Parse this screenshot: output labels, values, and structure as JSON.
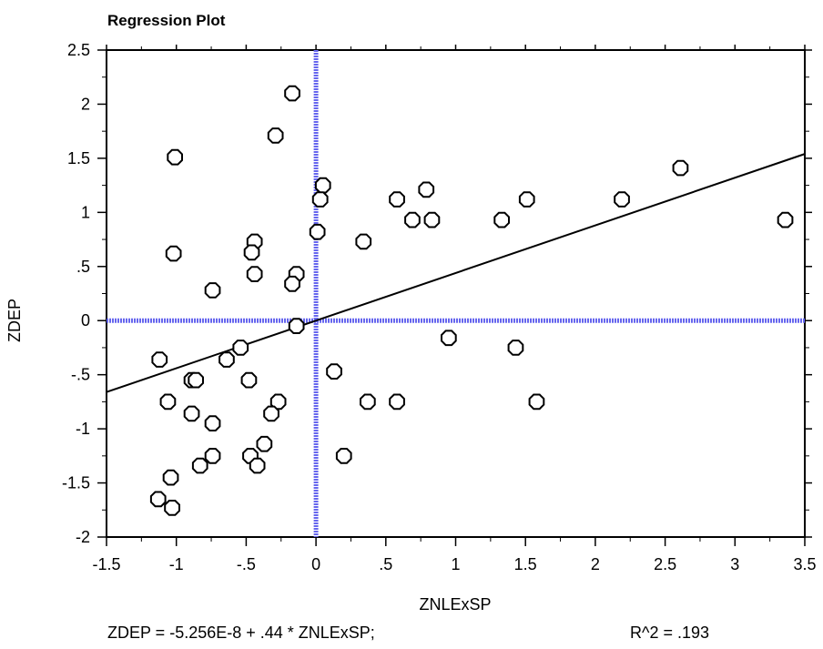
{
  "chart_data": {
    "type": "scatter",
    "title": "Regression Plot",
    "xlabel": "ZNLExSP",
    "ylabel": "ZDEP",
    "xlim": [
      -1.5,
      3.5
    ],
    "ylim": [
      -2,
      2.5
    ],
    "x_ticks": [
      -1.5,
      -1,
      -0.5,
      0,
      0.5,
      1,
      1.5,
      2,
      2.5,
      3,
      3.5
    ],
    "x_tick_labels": [
      "-1.5",
      "-1",
      "-.5",
      "0",
      ".5",
      "1",
      "1.5",
      "2",
      "2.5",
      "3",
      "3.5"
    ],
    "y_ticks": [
      -2,
      -1.5,
      -1,
      -0.5,
      0,
      0.5,
      1,
      1.5,
      2,
      2.5
    ],
    "y_tick_labels": [
      "-2",
      "-1.5",
      "-1",
      "-.5",
      "0",
      ".5",
      "1",
      "1.5",
      "2",
      "2.5"
    ],
    "points": [
      {
        "x": -0.17,
        "y": 2.1
      },
      {
        "x": -0.29,
        "y": 1.71
      },
      {
        "x": -1.01,
        "y": 1.51
      },
      {
        "x": -1.02,
        "y": 0.62
      },
      {
        "x": -0.44,
        "y": 0.73
      },
      {
        "x": -0.46,
        "y": 0.63
      },
      {
        "x": -0.44,
        "y": 0.43
      },
      {
        "x": -0.74,
        "y": 0.28
      },
      {
        "x": -0.14,
        "y": 0.43
      },
      {
        "x": -0.17,
        "y": 0.34
      },
      {
        "x": 0.05,
        "y": 1.25
      },
      {
        "x": 0.03,
        "y": 1.12
      },
      {
        "x": 0.01,
        "y": 0.82
      },
      {
        "x": 0.34,
        "y": 0.73
      },
      {
        "x": 0.58,
        "y": 1.12
      },
      {
        "x": 0.69,
        "y": 0.93
      },
      {
        "x": 0.79,
        "y": 1.21
      },
      {
        "x": 0.83,
        "y": 0.93
      },
      {
        "x": 1.33,
        "y": 0.93
      },
      {
        "x": 1.51,
        "y": 1.12
      },
      {
        "x": 2.19,
        "y": 1.12
      },
      {
        "x": 2.61,
        "y": 1.41
      },
      {
        "x": 3.36,
        "y": 0.93
      },
      {
        "x": -0.14,
        "y": -0.05
      },
      {
        "x": -1.12,
        "y": -0.36
      },
      {
        "x": -0.64,
        "y": -0.36
      },
      {
        "x": -0.54,
        "y": -0.25
      },
      {
        "x": -0.89,
        "y": -0.55
      },
      {
        "x": -0.86,
        "y": -0.55
      },
      {
        "x": -0.48,
        "y": -0.55
      },
      {
        "x": -1.06,
        "y": -0.75
      },
      {
        "x": -0.27,
        "y": -0.75
      },
      {
        "x": -0.89,
        "y": -0.86
      },
      {
        "x": -0.32,
        "y": -0.86
      },
      {
        "x": -0.74,
        "y": -0.95
      },
      {
        "x": -0.37,
        "y": -1.14
      },
      {
        "x": -0.74,
        "y": -1.25
      },
      {
        "x": -0.47,
        "y": -1.25
      },
      {
        "x": -0.83,
        "y": -1.34
      },
      {
        "x": -0.42,
        "y": -1.34
      },
      {
        "x": -1.04,
        "y": -1.45
      },
      {
        "x": -1.13,
        "y": -1.65
      },
      {
        "x": -1.03,
        "y": -1.73
      },
      {
        "x": 0.13,
        "y": -0.47
      },
      {
        "x": 0.2,
        "y": -1.25
      },
      {
        "x": 0.37,
        "y": -0.75
      },
      {
        "x": 0.58,
        "y": -0.75
      },
      {
        "x": 0.95,
        "y": -0.16
      },
      {
        "x": 1.43,
        "y": -0.25
      },
      {
        "x": 1.58,
        "y": -0.75
      }
    ],
    "regression": {
      "intercept": -5.256e-08,
      "slope": 0.44
    },
    "equation_text": "ZDEP = -5.256E-8 + .44 * ZNLExSP;",
    "r2_text": "R^2 = .193",
    "grid": false,
    "zero_line_color": "#6666ee",
    "marker_color": "#000000"
  }
}
